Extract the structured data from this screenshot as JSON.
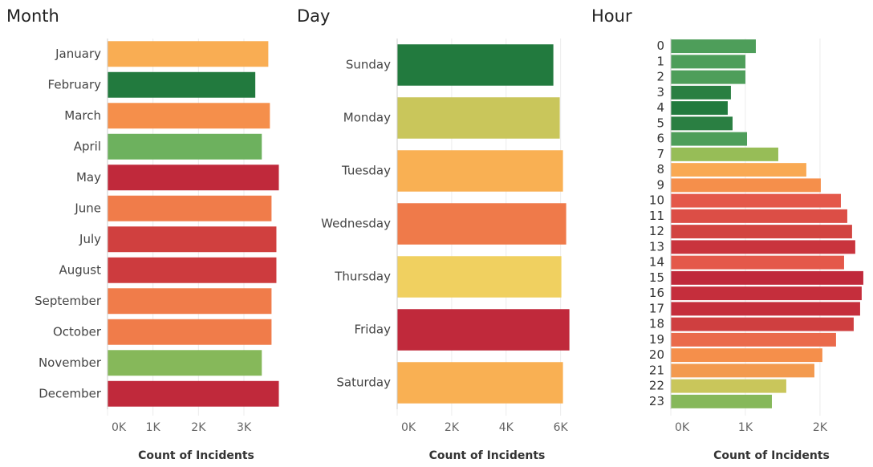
{
  "chart_data": [
    {
      "type": "bar",
      "orientation": "horizontal",
      "title": "Month",
      "categories": [
        "January",
        "February",
        "March",
        "April",
        "May",
        "June",
        "July",
        "August",
        "September",
        "October",
        "November",
        "December"
      ],
      "values": [
        3536,
        3250,
        3571,
        3393,
        3768,
        3607,
        3714,
        3714,
        3607,
        3607,
        3393,
        3768
      ],
      "colors": [
        "#f9ad53",
        "#227a3e",
        "#f58f4b",
        "#6db15e",
        "#c0293b",
        "#f07c4a",
        "#d0403f",
        "#cd3b3e",
        "#f07c4a",
        "#f07c4a",
        "#86b85a",
        "#c0293b"
      ],
      "xlim": [
        0,
        3900
      ],
      "xticks": [
        {
          "value": 0,
          "label": "0K"
        },
        {
          "value": 1000,
          "label": "1K"
        },
        {
          "value": 2000,
          "label": "2K"
        },
        {
          "value": 3000,
          "label": "3K"
        }
      ],
      "x_label": "Count of Incidents",
      "grid": true
    },
    {
      "type": "bar",
      "orientation": "horizontal",
      "title": "Day",
      "categories": [
        "Sunday",
        "Monday",
        "Tuesday",
        "Wednesday",
        "Thursday",
        "Friday",
        "Saturday"
      ],
      "values": [
        5735,
        5970,
        6088,
        6206,
        6029,
        6324,
        6088
      ],
      "colors": [
        "#227a3e",
        "#c9c65b",
        "#f9b053",
        "#ef7a4a",
        "#f0d060",
        "#c0293b",
        "#f9b053"
      ],
      "xlim": [
        0,
        6600
      ],
      "xticks": [
        {
          "value": 0,
          "label": "0K"
        },
        {
          "value": 2000,
          "label": "2K"
        },
        {
          "value": 4000,
          "label": "4K"
        },
        {
          "value": 6000,
          "label": "6K"
        }
      ],
      "x_label": "Count of Incidents",
      "grid": true
    },
    {
      "type": "bar",
      "orientation": "horizontal",
      "title": "Hour",
      "categories": [
        "0",
        "1",
        "2",
        "3",
        "4",
        "5",
        "6",
        "7",
        "8",
        "9",
        "10",
        "11",
        "12",
        "13",
        "14",
        "15",
        "16",
        "17",
        "18",
        "19",
        "20",
        "21",
        "22",
        "23"
      ],
      "values": [
        1140,
        1000,
        1000,
        806,
        763,
        828,
        1022,
        1441,
        1817,
        2011,
        2280,
        2366,
        2430,
        2473,
        2323,
        2581,
        2559,
        2538,
        2452,
        2215,
        2032,
        1925,
        1548,
        1355
      ],
      "colors": [
        "#4e9e5a",
        "#4e9e5a",
        "#4e9e5a",
        "#2a7f42",
        "#227a3e",
        "#2a7f42",
        "#4e9e5a",
        "#97bd57",
        "#f9a953",
        "#f58f4b",
        "#e4584a",
        "#dc4e46",
        "#d24440",
        "#c9343d",
        "#e4584a",
        "#c0293b",
        "#c52e3c",
        "#c52e3c",
        "#cf3f40",
        "#ea6a4b",
        "#f58f4b",
        "#f39a4f",
        "#c9c65b",
        "#86b85a"
      ],
      "xlim": [
        0,
        2700
      ],
      "xticks": [
        {
          "value": 0,
          "label": "0K"
        },
        {
          "value": 1000,
          "label": "1K"
        },
        {
          "value": 2000,
          "label": "2K"
        }
      ],
      "x_label": "Count of Incidents",
      "grid": true
    }
  ]
}
